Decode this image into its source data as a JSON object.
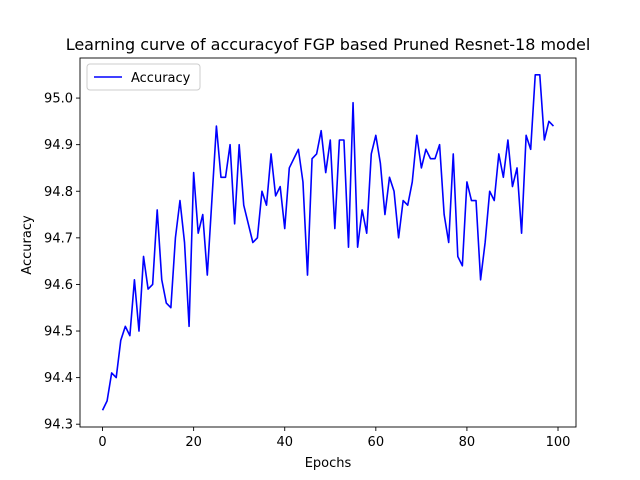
{
  "chart_data": {
    "type": "line",
    "title": "Learning curve of accuracyof FGP based Pruned Resnet-18 model",
    "xlabel": "Epochs",
    "ylabel": "Accuracy",
    "xlim": [
      -4.95,
      103.95
    ],
    "ylim": [
      94.294,
      95.086
    ],
    "xticks": [
      0,
      20,
      40,
      60,
      80,
      100
    ],
    "yticks": [
      94.3,
      94.4,
      94.5,
      94.6,
      94.7,
      94.8,
      94.9,
      95.0
    ],
    "ytick_labels": [
      "94.3",
      "94.4",
      "94.5",
      "94.6",
      "94.7",
      "94.8",
      "94.9",
      "95.0"
    ],
    "grid": false,
    "legend": {
      "placement": "upper-left"
    },
    "series": [
      {
        "name": "Accuracy",
        "color": "#0000ff",
        "x": [
          0,
          1,
          2,
          3,
          4,
          5,
          6,
          7,
          8,
          9,
          10,
          11,
          12,
          13,
          14,
          15,
          16,
          17,
          18,
          19,
          20,
          21,
          22,
          23,
          24,
          25,
          26,
          27,
          28,
          29,
          30,
          31,
          32,
          33,
          34,
          35,
          36,
          37,
          38,
          39,
          40,
          41,
          42,
          43,
          44,
          45,
          46,
          47,
          48,
          49,
          50,
          51,
          52,
          53,
          54,
          55,
          56,
          57,
          58,
          59,
          60,
          61,
          62,
          63,
          64,
          65,
          66,
          67,
          68,
          69,
          70,
          71,
          72,
          73,
          74,
          75,
          76,
          77,
          78,
          79,
          80,
          81,
          82,
          83,
          84,
          85,
          86,
          87,
          88,
          89,
          90,
          91,
          92,
          93,
          94,
          95,
          96,
          97,
          98,
          99
        ],
        "y": [
          94.33,
          94.35,
          94.41,
          94.4,
          94.48,
          94.51,
          94.49,
          94.61,
          94.5,
          94.66,
          94.59,
          94.6,
          94.76,
          94.61,
          94.56,
          94.55,
          94.7,
          94.78,
          94.69,
          94.51,
          94.84,
          94.71,
          94.75,
          94.62,
          94.78,
          94.94,
          94.83,
          94.83,
          94.9,
          94.73,
          94.9,
          94.77,
          94.73,
          94.69,
          94.7,
          94.8,
          94.77,
          94.88,
          94.79,
          94.81,
          94.72,
          94.85,
          94.87,
          94.89,
          94.82,
          94.62,
          94.87,
          94.88,
          94.93,
          94.84,
          94.91,
          94.72,
          94.91,
          94.91,
          94.68,
          94.99,
          94.68,
          94.76,
          94.71,
          94.88,
          94.92,
          94.86,
          94.75,
          94.83,
          94.8,
          94.7,
          94.78,
          94.77,
          94.82,
          94.92,
          94.85,
          94.89,
          94.87,
          94.87,
          94.9,
          94.75,
          94.69,
          94.88,
          94.66,
          94.64,
          94.82,
          94.78,
          94.78,
          94.61,
          94.69,
          94.8,
          94.78,
          94.88,
          94.83,
          94.91,
          94.81,
          94.85,
          94.71,
          94.92,
          94.89,
          95.05,
          95.05,
          94.91,
          94.95,
          94.94
        ]
      }
    ]
  }
}
